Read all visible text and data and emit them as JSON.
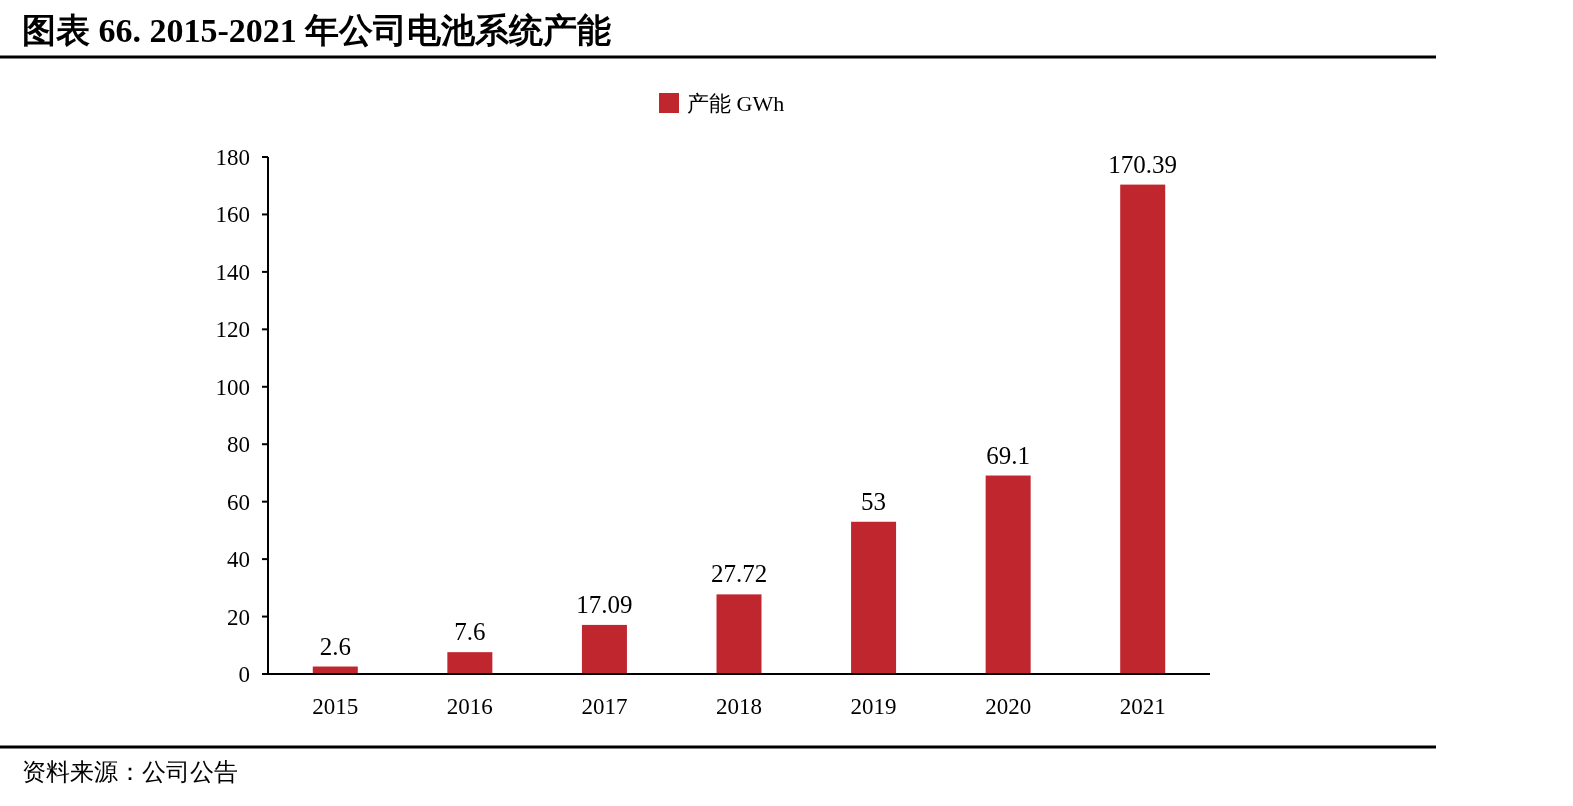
{
  "chart_data": {
    "type": "bar",
    "title": "图表 66. 2015-2021 年公司电池系统产能",
    "categories": [
      "2015",
      "2016",
      "2017",
      "2018",
      "2019",
      "2020",
      "2021"
    ],
    "series": [
      {
        "name": "产能 GWh",
        "color": "#c0262d",
        "values": [
          2.6,
          7.6,
          17.09,
          27.72,
          53,
          69.1,
          170.39
        ]
      }
    ],
    "ylim": [
      0,
      180
    ],
    "yticks": [
      0,
      20,
      40,
      60,
      80,
      100,
      120,
      140,
      160,
      180
    ],
    "data_labels": true,
    "legend": "top",
    "grid": false,
    "annotations": [
      "资料来源：公司公告"
    ]
  }
}
